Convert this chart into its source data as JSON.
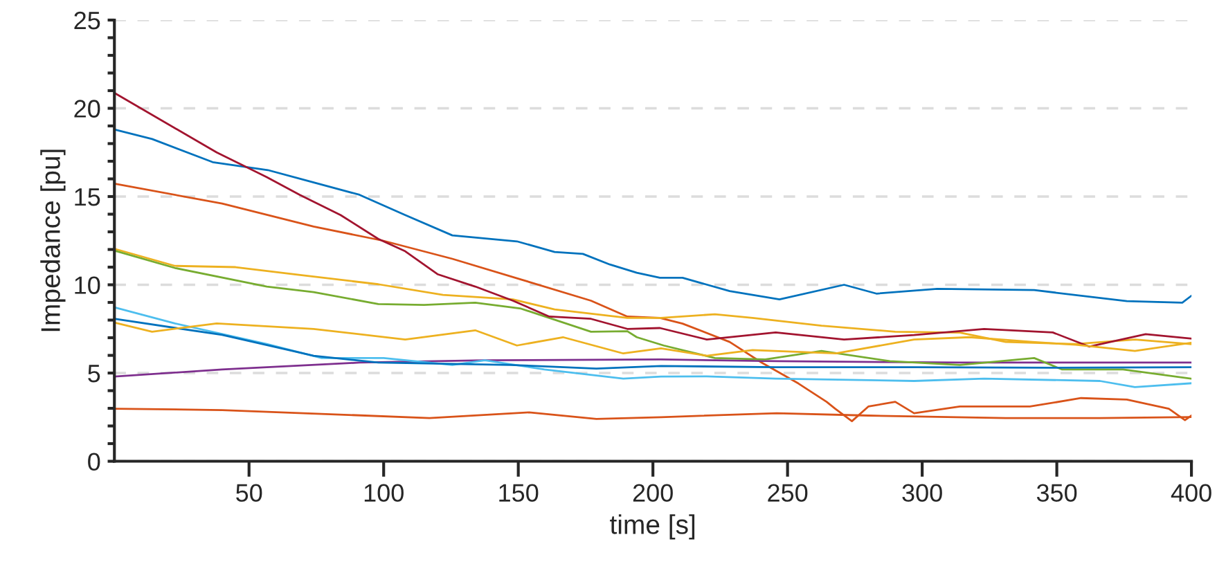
{
  "chart_data": {
    "type": "line",
    "xlabel": "time [s]",
    "ylabel": "Impedance [pu]",
    "xlim": [
      0,
      400
    ],
    "ylim": [
      0,
      25
    ],
    "xticks": [
      50,
      100,
      150,
      200,
      250,
      300,
      350,
      400
    ],
    "yticks": [
      0,
      {
        "value": 1,
        "label": null
      },
      {
        "value": 2,
        "label": null
      },
      {
        "value": 3,
        "label": null
      },
      {
        "value": 4,
        "label": null
      },
      5,
      {
        "value": 6,
        "label": null
      },
      {
        "value": 7,
        "label": null
      },
      {
        "value": 8,
        "label": null
      },
      {
        "value": 9,
        "label": null
      },
      10,
      {
        "value": 11,
        "label": null
      },
      {
        "value": 12,
        "label": null
      },
      {
        "value": 13,
        "label": null
      },
      {
        "value": 14,
        "label": null
      },
      15,
      {
        "value": 16,
        "label": null
      },
      {
        "value": 17,
        "label": null
      },
      {
        "value": 18,
        "label": null
      },
      {
        "value": 19,
        "label": null
      },
      20,
      {
        "value": 21,
        "label": null
      },
      {
        "value": 22,
        "label": null
      },
      {
        "value": 23,
        "label": null
      },
      {
        "value": 24,
        "label": null
      },
      25
    ],
    "grid": "y",
    "marker": "none",
    "line_style": "solid",
    "series": [
      {
        "color": "#0072bd",
        "x": [
          0,
          14,
          36.5,
          57,
          74,
          91,
          108,
          125.5,
          149.5,
          163.5,
          174,
          184,
          194,
          202.6,
          211,
          228.5,
          247,
          271,
          283,
          305.6,
          341.6,
          376,
          396.6,
          400
        ],
        "values": [
          18.8,
          18.26,
          16.95,
          16.5,
          15.8,
          15.1,
          13.95,
          12.8,
          12.46,
          11.86,
          11.75,
          11.15,
          10.68,
          10.4,
          10.4,
          9.64,
          9.17,
          10.0,
          9.5,
          9.77,
          9.7,
          9.07,
          8.99,
          9.38
        ]
      },
      {
        "color": "#d95319",
        "x": [
          0,
          40,
          74,
          99.7,
          125.5,
          151,
          177,
          190.5,
          202.6,
          211,
          228.5,
          240.4,
          254,
          264.5,
          267.7,
          273.9,
          280,
          290,
          297,
          314,
          340,
          359,
          376,
          391.6,
          397.6,
          400
        ],
        "values": [
          15.73,
          14.6,
          13.3,
          12.5,
          11.47,
          10.3,
          9.1,
          8.2,
          8.12,
          7.8,
          6.76,
          5.59,
          4.41,
          3.37,
          2.98,
          2.27,
          3.1,
          3.37,
          2.72,
          3.1,
          3.1,
          3.58,
          3.5,
          2.98,
          2.33,
          2.59
        ]
      },
      {
        "color": "#edb120",
        "x": [
          0,
          22.5,
          45,
          69,
          98,
          122,
          148,
          163.5,
          190.5,
          203,
          223,
          237,
          262.6,
          290,
          314,
          331,
          357,
          379,
          400
        ],
        "values": [
          12.04,
          11.07,
          11.0,
          10.55,
          10.03,
          9.43,
          9.17,
          8.6,
          8.12,
          8.12,
          8.33,
          8.12,
          7.68,
          7.34,
          7.29,
          6.76,
          6.64,
          6.9,
          6.64
        ]
      },
      {
        "color": "#7e2f8e",
        "x": [
          0,
          40,
          91,
          137,
          203,
          246,
          314,
          400
        ],
        "values": [
          4.8,
          5.2,
          5.59,
          5.72,
          5.77,
          5.67,
          5.59,
          5.59
        ]
      },
      {
        "color": "#77ac30",
        "x": [
          0,
          22.5,
          56.6,
          74,
          98,
          115,
          134,
          151,
          177,
          190.5,
          194,
          204,
          223,
          241.7,
          262.6,
          288,
          314,
          341.6,
          352,
          374.6,
          400
        ],
        "values": [
          11.94,
          10.95,
          9.9,
          9.58,
          8.91,
          8.86,
          8.99,
          8.65,
          7.34,
          7.37,
          7.03,
          6.56,
          5.85,
          5.77,
          6.25,
          5.67,
          5.46,
          5.85,
          5.2,
          5.2,
          4.68
        ]
      },
      {
        "color": "#4dbeee",
        "x": [
          0,
          22.5,
          56.6,
          77,
          100,
          125.5,
          137.6,
          159.7,
          189,
          203,
          220,
          245.6,
          297,
          323,
          366,
          379,
          400
        ],
        "values": [
          8.72,
          7.81,
          6.64,
          5.85,
          5.85,
          5.46,
          5.72,
          5.2,
          4.68,
          4.8,
          4.81,
          4.68,
          4.55,
          4.68,
          4.55,
          4.2,
          4.42
        ]
      },
      {
        "color": "#a2142f",
        "x": [
          0,
          38,
          56.6,
          68.8,
          84,
          98,
          108,
          120,
          134,
          148,
          161.5,
          177,
          190.5,
          202.6,
          220,
          245.6,
          271,
          297,
          323,
          348.5,
          362,
          383,
          400
        ],
        "values": [
          20.87,
          17.5,
          16.1,
          15.1,
          13.95,
          12.6,
          11.9,
          10.6,
          9.9,
          9.1,
          8.2,
          8.07,
          7.5,
          7.55,
          6.9,
          7.3,
          6.9,
          7.15,
          7.5,
          7.3,
          6.5,
          7.2,
          6.95
        ]
      },
      {
        "color": "#0072bd",
        "x": [
          0,
          40,
          74,
          98,
          147,
          179,
          203,
          245.6,
          297,
          348,
          400
        ],
        "values": [
          8.07,
          7.16,
          5.98,
          5.59,
          5.46,
          5.25,
          5.4,
          5.33,
          5.33,
          5.3,
          5.33
        ]
      },
      {
        "color": "#d95319",
        "x": [
          0,
          40,
          117,
          154,
          179,
          203,
          246,
          280,
          331,
          366,
          400
        ],
        "values": [
          2.98,
          2.9,
          2.45,
          2.77,
          2.4,
          2.5,
          2.72,
          2.59,
          2.45,
          2.45,
          2.51
        ]
      },
      {
        "color": "#edb120",
        "x": [
          0,
          14,
          38,
          74,
          108,
          134,
          149.5,
          166.6,
          189,
          203,
          220,
          237,
          268,
          297,
          317.6,
          341,
          357,
          379,
          400
        ],
        "values": [
          7.86,
          7.34,
          7.81,
          7.5,
          6.9,
          7.42,
          6.56,
          7.03,
          6.11,
          6.4,
          5.98,
          6.3,
          6.11,
          6.9,
          7.03,
          6.76,
          6.6,
          6.25,
          6.72
        ]
      }
    ]
  }
}
